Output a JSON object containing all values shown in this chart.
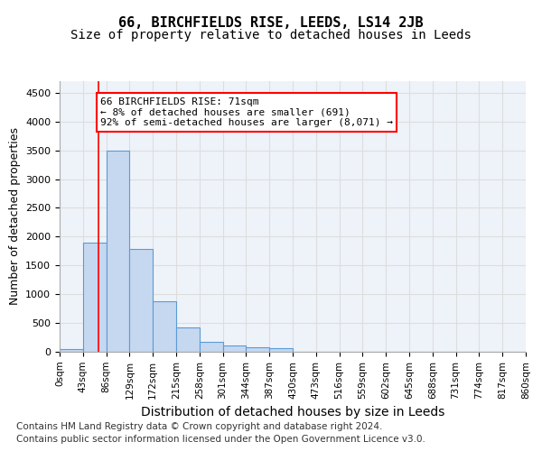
{
  "title_line1": "66, BIRCHFIELDS RISE, LEEDS, LS14 2JB",
  "title_line2": "Size of property relative to detached houses in Leeds",
  "xlabel": "Distribution of detached houses by size in Leeds",
  "ylabel": "Number of detached properties",
  "bar_values": [
    50,
    1900,
    3500,
    1780,
    870,
    430,
    180,
    110,
    80,
    60,
    0,
    0,
    0,
    0,
    0,
    0,
    0,
    0,
    0,
    0
  ],
  "bar_labels": [
    "0sqm",
    "43sqm",
    "86sqm",
    "129sqm",
    "172sqm",
    "215sqm",
    "258sqm",
    "301sqm",
    "344sqm",
    "387sqm",
    "430sqm",
    "473sqm",
    "516sqm",
    "559sqm",
    "602sqm",
    "645sqm",
    "688sqm",
    "731sqm",
    "774sqm",
    "817sqm",
    "860sqm"
  ],
  "bar_color": "#c5d8f0",
  "bar_edge_color": "#5b9bd5",
  "vline_x": 71,
  "bin_width": 43,
  "annotation_text": "66 BIRCHFIELDS RISE: 71sqm\n← 8% of detached houses are smaller (691)\n92% of semi-detached houses are larger (8,071) →",
  "annotation_box_color": "white",
  "annotation_box_edgecolor": "red",
  "vline_color": "red",
  "ylim": [
    0,
    4700
  ],
  "yticks": [
    0,
    500,
    1000,
    1500,
    2000,
    2500,
    3000,
    3500,
    4000,
    4500
  ],
  "grid_color": "#dddddd",
  "background_color": "#eef3fa",
  "footer_line1": "Contains HM Land Registry data © Crown copyright and database right 2024.",
  "footer_line2": "Contains public sector information licensed under the Open Government Licence v3.0.",
  "title_fontsize": 11,
  "subtitle_fontsize": 10,
  "axis_label_fontsize": 9,
  "tick_fontsize": 8,
  "footer_fontsize": 7.5
}
